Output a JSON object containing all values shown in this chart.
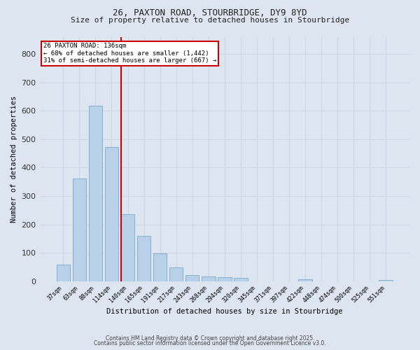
{
  "title_line1": "26, PAXTON ROAD, STOURBRIDGE, DY9 8YD",
  "title_line2": "Size of property relative to detached houses in Stourbridge",
  "xlabel": "Distribution of detached houses by size in Stourbridge",
  "ylabel": "Number of detached properties",
  "categories": [
    "37sqm",
    "63sqm",
    "88sqm",
    "114sqm",
    "140sqm",
    "165sqm",
    "191sqm",
    "217sqm",
    "243sqm",
    "268sqm",
    "294sqm",
    "320sqm",
    "345sqm",
    "371sqm",
    "397sqm",
    "422sqm",
    "448sqm",
    "474sqm",
    "500sqm",
    "525sqm",
    "551sqm"
  ],
  "values": [
    60,
    362,
    617,
    472,
    237,
    160,
    99,
    48,
    22,
    18,
    14,
    12,
    0,
    0,
    0,
    8,
    0,
    0,
    0,
    0,
    5
  ],
  "bar_color": "#b8d0e8",
  "bar_edge_color": "#7aaac8",
  "bar_linewidth": 0.6,
  "vline_color": "#cc0000",
  "vline_pos": 3.58,
  "vline_label_title": "26 PAXTON ROAD: 136sqm",
  "vline_label_line2": "← 68% of detached houses are smaller (1,442)",
  "vline_label_line3": "31% of semi-detached houses are larger (667) →",
  "annotation_box_color": "#cc0000",
  "annotation_bg": "#ffffff",
  "ylim": [
    0,
    860
  ],
  "yticks": [
    0,
    100,
    200,
    300,
    400,
    500,
    600,
    700,
    800
  ],
  "grid_color": "#c8d4e4",
  "bg_color": "#dde6f0",
  "footer_line1": "Contains HM Land Registry data © Crown copyright and database right 2025.",
  "footer_line2": "Contains public sector information licensed under the Open Government Licence v3.0."
}
